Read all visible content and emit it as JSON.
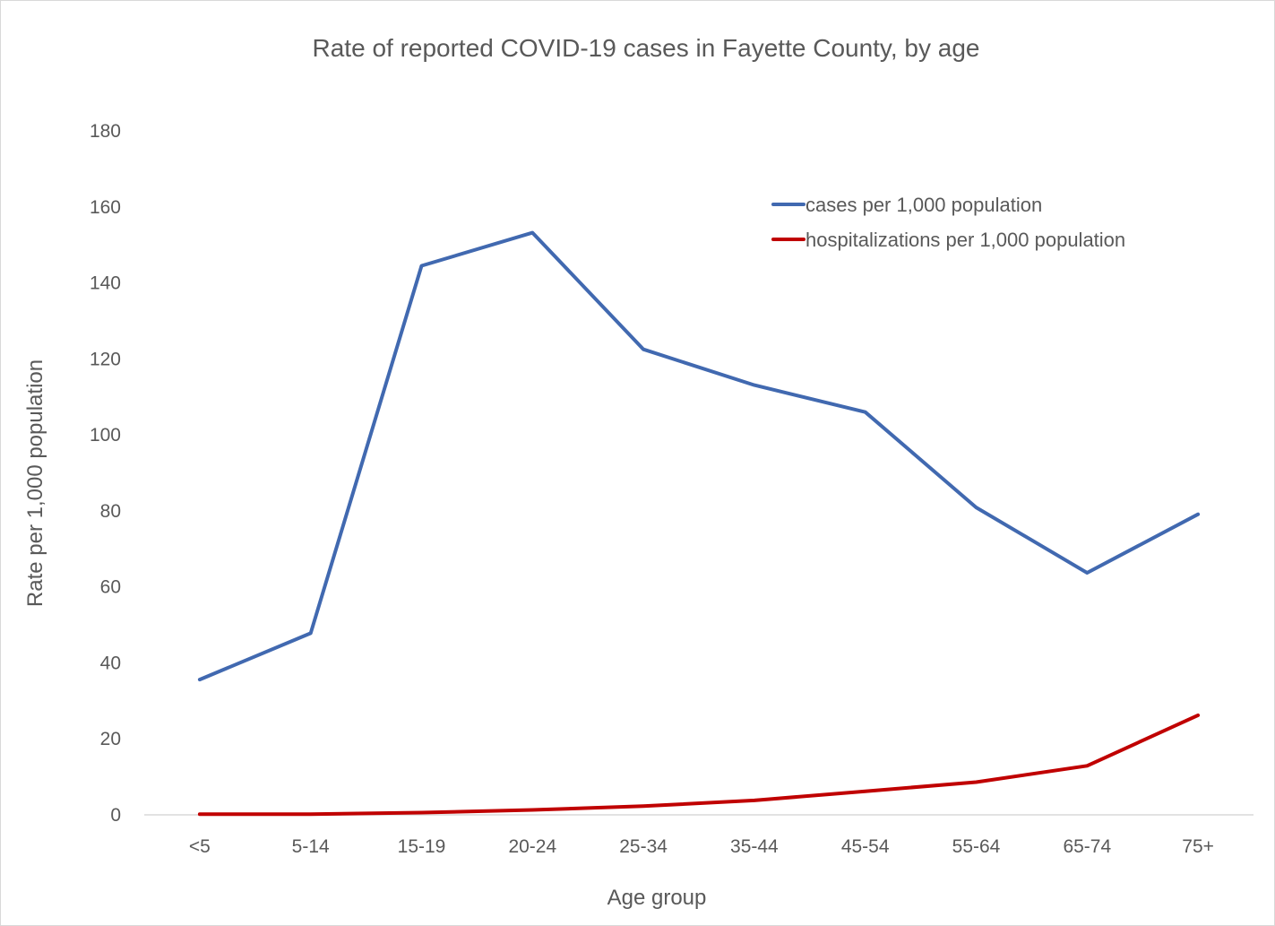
{
  "chart_data": {
    "type": "line",
    "title": "Rate of reported COVID-19 cases in Fayette County, by age",
    "xlabel": "Age group",
    "ylabel": "Rate per 1,000 population",
    "categories": [
      "<5",
      "5-14",
      "15-19",
      "20-24",
      "25-34",
      "35-44",
      "45-54",
      "55-64",
      "65-74",
      "75+"
    ],
    "ylim": [
      0,
      180
    ],
    "yticks": [
      0,
      20,
      40,
      60,
      80,
      100,
      120,
      140,
      160,
      180
    ],
    "grid": false,
    "legend_position": "top-right",
    "series": [
      {
        "name": "cases per 1,000 population",
        "color": "#4169b0",
        "values": [
          35.6,
          47.8,
          144.5,
          153.2,
          122.5,
          113.1,
          106.0,
          80.9,
          63.7,
          79.1
        ]
      },
      {
        "name": "hospitalizations per 1,000 population",
        "color": "#c00000",
        "values": [
          0.2,
          0.2,
          0.6,
          1.3,
          2.3,
          3.8,
          6.2,
          8.6,
          12.9,
          26.2
        ]
      }
    ]
  }
}
